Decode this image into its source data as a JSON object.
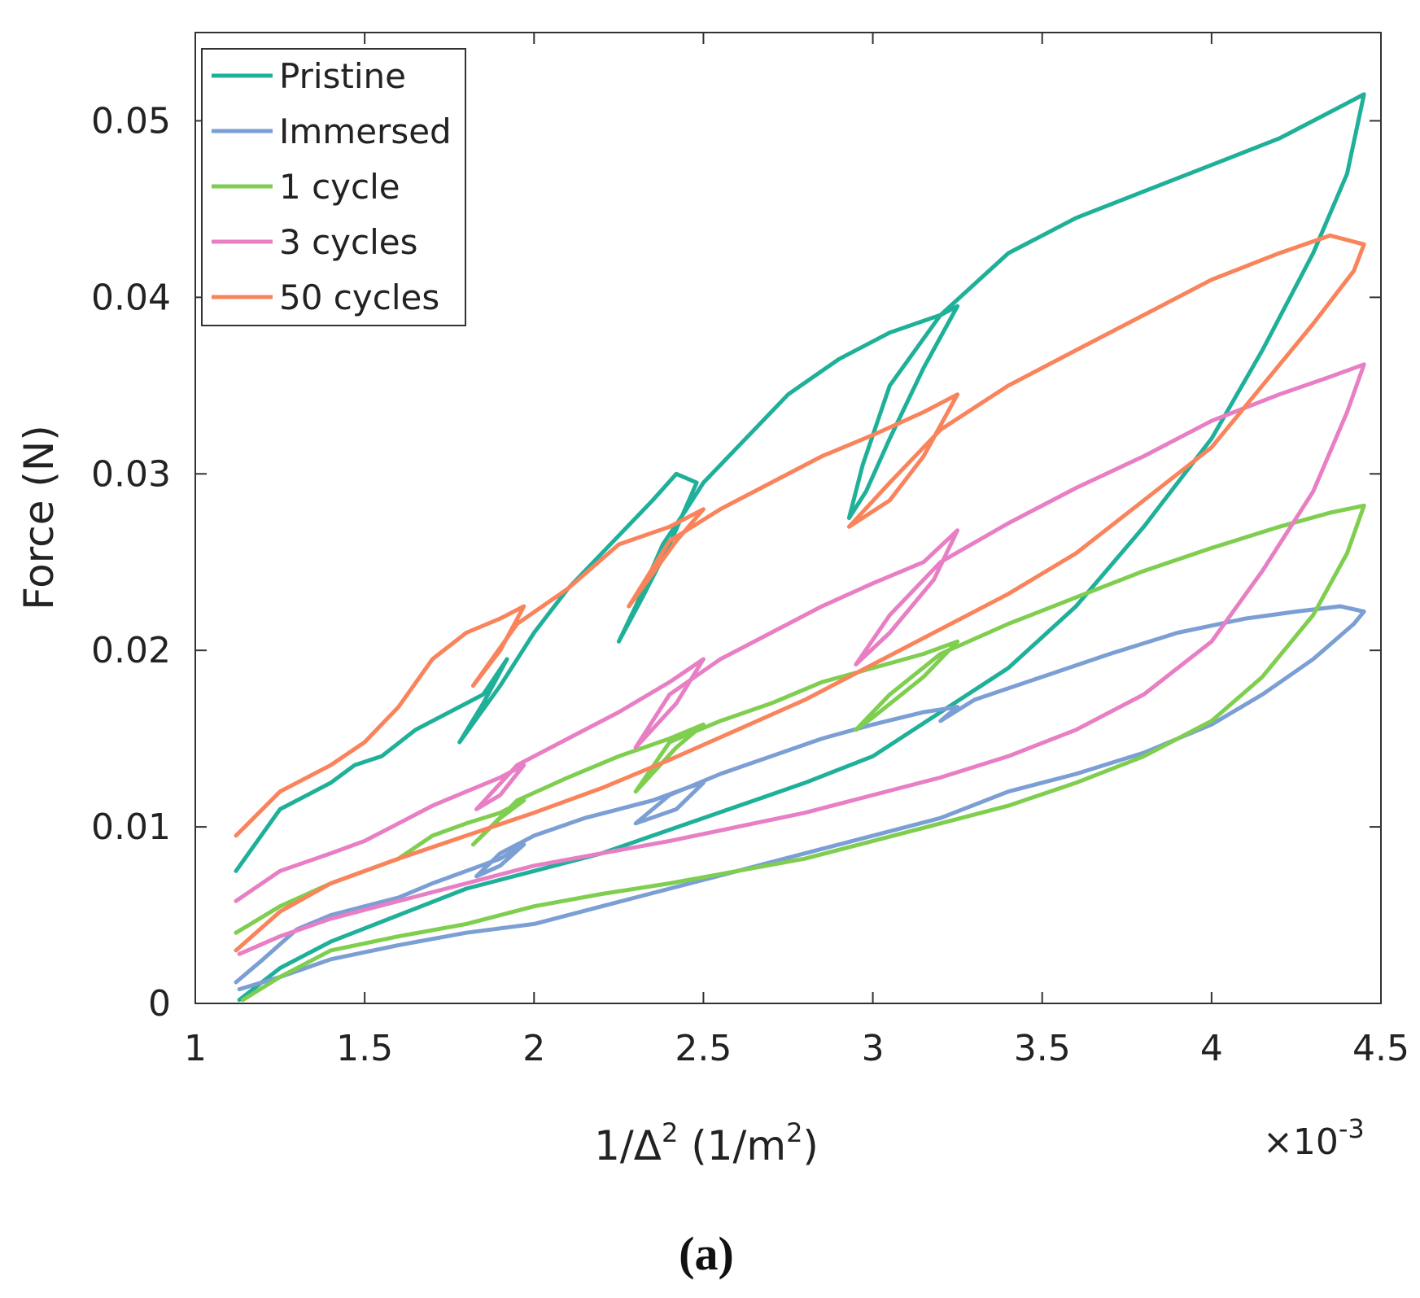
{
  "chart_data": {
    "type": "line",
    "title": "",
    "xlabel_main": "1/Δ",
    "xlabel_sup": "2",
    "xlabel_unit_open": " (1/m",
    "xlabel_unit_sup": "2",
    "xlabel_unit_close": ")",
    "x_multiplier_prefix": "×10",
    "x_multiplier_exp": "-3",
    "ylabel": "Force (N)",
    "xlim": [
      1,
      4.5
    ],
    "ylim": [
      0,
      0.055
    ],
    "x_ticks": [
      1,
      1.5,
      2,
      2.5,
      3,
      3.5,
      4,
      4.5
    ],
    "x_tick_labels": [
      "1",
      "1.5",
      "2",
      "2.5",
      "3",
      "3.5",
      "4",
      "4.5"
    ],
    "y_ticks": [
      0,
      0.01,
      0.02,
      0.03,
      0.04,
      0.05
    ],
    "y_tick_labels": [
      "0",
      "0.01",
      "0.02",
      "0.03",
      "0.04",
      "0.05"
    ],
    "grid": false,
    "legend_position": "top-left",
    "panel_label": "(a)",
    "series": [
      {
        "name": "Pristine",
        "color": "#1fb09a",
        "x": [
          1.12,
          1.25,
          1.4,
          1.47,
          1.55,
          1.65,
          1.75,
          1.85,
          1.92,
          1.85,
          1.78,
          1.9,
          2.0,
          2.1,
          2.25,
          2.35,
          2.42,
          2.48,
          2.4,
          2.32,
          2.25,
          2.3,
          2.38,
          2.45,
          2.5,
          2.6,
          2.75,
          2.9,
          3.05,
          3.2,
          3.25,
          3.15,
          3.05,
          2.98,
          2.93,
          2.97,
          3.05,
          3.2,
          3.4,
          3.6,
          3.8,
          4.0,
          4.2,
          4.35,
          4.45,
          4.4,
          4.3,
          4.15,
          4.0,
          3.8,
          3.6,
          3.4,
          3.2,
          3.0,
          2.8,
          2.65,
          2.5,
          2.35,
          2.2,
          2.0,
          1.8,
          1.6,
          1.4,
          1.25,
          1.13
        ],
        "y": [
          0.0075,
          0.011,
          0.0125,
          0.0135,
          0.014,
          0.0155,
          0.0165,
          0.0175,
          0.0195,
          0.017,
          0.0148,
          0.018,
          0.021,
          0.0235,
          0.0265,
          0.0285,
          0.03,
          0.0295,
          0.026,
          0.023,
          0.0205,
          0.0225,
          0.026,
          0.028,
          0.0295,
          0.0315,
          0.0345,
          0.0365,
          0.038,
          0.039,
          0.0395,
          0.036,
          0.032,
          0.029,
          0.0275,
          0.0305,
          0.035,
          0.039,
          0.0425,
          0.0445,
          0.046,
          0.0475,
          0.049,
          0.0505,
          0.0515,
          0.047,
          0.0425,
          0.037,
          0.032,
          0.027,
          0.0225,
          0.019,
          0.0165,
          0.014,
          0.0125,
          0.0115,
          0.0105,
          0.0095,
          0.0085,
          0.0075,
          0.0065,
          0.005,
          0.0035,
          0.002,
          0.0002
        ]
      },
      {
        "name": "Immersed",
        "color": "#7b9fd4",
        "x": [
          1.12,
          1.2,
          1.3,
          1.4,
          1.5,
          1.6,
          1.7,
          1.8,
          1.9,
          1.97,
          1.9,
          1.83,
          1.9,
          2.0,
          2.15,
          2.25,
          2.35,
          2.45,
          2.5,
          2.42,
          2.3,
          2.4,
          2.55,
          2.7,
          2.85,
          3.0,
          3.15,
          3.25,
          3.2,
          3.3,
          3.5,
          3.7,
          3.9,
          4.1,
          4.25,
          4.38,
          4.45,
          4.42,
          4.3,
          4.15,
          4.0,
          3.8,
          3.6,
          3.4,
          3.2,
          3.0,
          2.8,
          2.6,
          2.4,
          2.2,
          2.0,
          1.8,
          1.6,
          1.4,
          1.25,
          1.13
        ],
        "y": [
          0.0012,
          0.0025,
          0.0042,
          0.005,
          0.0055,
          0.006,
          0.0068,
          0.0075,
          0.0082,
          0.009,
          0.0078,
          0.0072,
          0.0085,
          0.0095,
          0.0105,
          0.011,
          0.0115,
          0.0122,
          0.0125,
          0.011,
          0.0102,
          0.0118,
          0.013,
          0.014,
          0.015,
          0.0158,
          0.0165,
          0.0168,
          0.016,
          0.0172,
          0.0185,
          0.0198,
          0.021,
          0.0218,
          0.0222,
          0.0225,
          0.0222,
          0.0215,
          0.0195,
          0.0175,
          0.0158,
          0.0142,
          0.013,
          0.012,
          0.0105,
          0.0095,
          0.0085,
          0.0075,
          0.0065,
          0.0055,
          0.0045,
          0.004,
          0.0033,
          0.0025,
          0.0015,
          0.0008
        ]
      },
      {
        "name": "1 cycle",
        "color": "#7fce4f",
        "x": [
          1.12,
          1.25,
          1.4,
          1.5,
          1.6,
          1.7,
          1.8,
          1.9,
          1.97,
          1.9,
          1.82,
          1.95,
          2.1,
          2.25,
          2.4,
          2.5,
          2.42,
          2.3,
          2.4,
          2.55,
          2.7,
          2.85,
          3.0,
          3.15,
          3.25,
          3.15,
          3.0,
          2.95,
          3.05,
          3.2,
          3.4,
          3.6,
          3.8,
          4.0,
          4.2,
          4.35,
          4.45,
          4.4,
          4.3,
          4.15,
          4.0,
          3.8,
          3.6,
          3.4,
          3.2,
          3.0,
          2.8,
          2.6,
          2.4,
          2.2,
          2.0,
          1.8,
          1.6,
          1.4,
          1.25,
          1.14
        ],
        "y": [
          0.004,
          0.0055,
          0.0068,
          0.0075,
          0.0082,
          0.0095,
          0.0102,
          0.0108,
          0.0115,
          0.0105,
          0.009,
          0.0115,
          0.0128,
          0.014,
          0.015,
          0.0158,
          0.0145,
          0.012,
          0.0148,
          0.016,
          0.017,
          0.0182,
          0.019,
          0.0198,
          0.0205,
          0.0185,
          0.0162,
          0.0155,
          0.0175,
          0.0198,
          0.0215,
          0.023,
          0.0245,
          0.0258,
          0.027,
          0.0278,
          0.0282,
          0.0255,
          0.022,
          0.0185,
          0.016,
          0.014,
          0.0125,
          0.0112,
          0.0102,
          0.0092,
          0.0082,
          0.0075,
          0.0068,
          0.0062,
          0.0055,
          0.0045,
          0.0038,
          0.003,
          0.0015,
          0.0002
        ]
      },
      {
        "name": "3 cycles",
        "color": "#e87fc4",
        "x": [
          1.12,
          1.25,
          1.4,
          1.5,
          1.6,
          1.7,
          1.8,
          1.9,
          1.97,
          1.9,
          1.83,
          1.95,
          2.1,
          2.25,
          2.4,
          2.5,
          2.42,
          2.3,
          2.4,
          2.55,
          2.7,
          2.85,
          3.0,
          3.15,
          3.25,
          3.18,
          3.05,
          2.95,
          3.05,
          3.2,
          3.4,
          3.6,
          3.8,
          4.0,
          4.2,
          4.35,
          4.45,
          4.4,
          4.3,
          4.15,
          4.0,
          3.8,
          3.6,
          3.4,
          3.2,
          3.0,
          2.8,
          2.6,
          2.4,
          2.2,
          2.0,
          1.8,
          1.6,
          1.4,
          1.25,
          1.13
        ],
        "y": [
          0.0058,
          0.0075,
          0.0085,
          0.0092,
          0.0102,
          0.0112,
          0.012,
          0.0128,
          0.0135,
          0.0118,
          0.011,
          0.0135,
          0.015,
          0.0165,
          0.0182,
          0.0195,
          0.017,
          0.0145,
          0.0175,
          0.0195,
          0.021,
          0.0225,
          0.0238,
          0.025,
          0.0268,
          0.024,
          0.021,
          0.0192,
          0.022,
          0.025,
          0.0272,
          0.0292,
          0.031,
          0.033,
          0.0345,
          0.0355,
          0.0362,
          0.0335,
          0.029,
          0.0245,
          0.0205,
          0.0175,
          0.0155,
          0.014,
          0.0128,
          0.0118,
          0.0108,
          0.01,
          0.0092,
          0.0085,
          0.0078,
          0.0068,
          0.0058,
          0.0048,
          0.0038,
          0.0028
        ]
      },
      {
        "name": "50 cycles",
        "color": "#f9845c",
        "x": [
          1.12,
          1.25,
          1.4,
          1.5,
          1.6,
          1.7,
          1.8,
          1.9,
          1.97,
          1.9,
          1.82,
          1.95,
          2.1,
          2.25,
          2.4,
          2.5,
          2.42,
          2.28,
          2.4,
          2.55,
          2.7,
          2.85,
          3.0,
          3.15,
          3.25,
          3.15,
          3.05,
          2.93,
          3.05,
          3.2,
          3.4,
          3.6,
          3.8,
          4.0,
          4.2,
          4.35,
          4.45,
          4.42,
          4.3,
          4.15,
          4.0,
          3.8,
          3.6,
          3.4,
          3.2,
          3.0,
          2.8,
          2.6,
          2.4,
          2.2,
          2.0,
          1.8,
          1.6,
          1.4,
          1.25,
          1.12
        ],
        "y": [
          0.0095,
          0.012,
          0.0135,
          0.0148,
          0.0168,
          0.0195,
          0.021,
          0.0218,
          0.0225,
          0.02,
          0.018,
          0.0215,
          0.0235,
          0.026,
          0.027,
          0.028,
          0.0262,
          0.0225,
          0.0262,
          0.028,
          0.0295,
          0.031,
          0.0322,
          0.0335,
          0.0345,
          0.031,
          0.0285,
          0.027,
          0.0295,
          0.0325,
          0.035,
          0.037,
          0.039,
          0.041,
          0.0425,
          0.0435,
          0.043,
          0.0415,
          0.0385,
          0.035,
          0.0315,
          0.0285,
          0.0255,
          0.0232,
          0.0212,
          0.0192,
          0.0172,
          0.0155,
          0.0138,
          0.0122,
          0.0108,
          0.0095,
          0.0082,
          0.0068,
          0.0052,
          0.003
        ]
      }
    ]
  }
}
